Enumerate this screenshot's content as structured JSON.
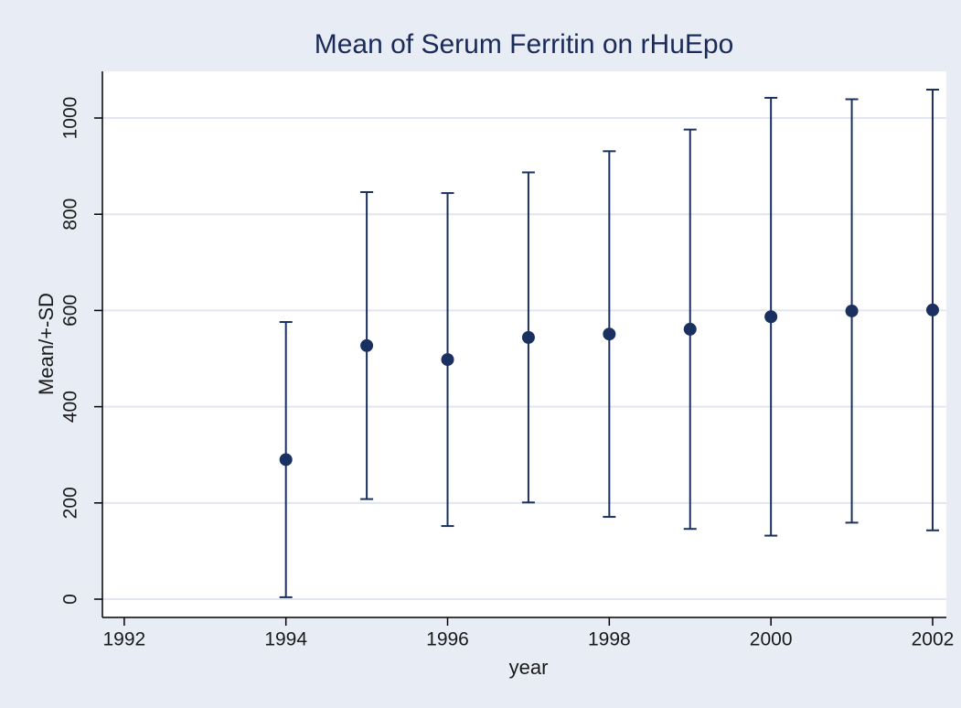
{
  "chart_data": {
    "type": "errorbar",
    "title": "Mean of  Serum Ferritin on rHuEpo",
    "x_label": "year",
    "y_label": "Mean/+-SD",
    "x": [
      1994,
      1995,
      1996,
      1997,
      1998,
      1999,
      2000,
      2001,
      2002
    ],
    "values": [
      290,
      527,
      498,
      544,
      551,
      561,
      587,
      599,
      601
    ],
    "errors": [
      286,
      319,
      346,
      343,
      380,
      415,
      455,
      440,
      458
    ],
    "color": "#1a3060",
    "xlim": [
      1991.73,
      2002.17
    ],
    "xticks": [
      1992,
      1994,
      1996,
      1998,
      2000,
      2002
    ],
    "ylim": [
      -38,
      1097
    ],
    "yticks": [
      0,
      200,
      400,
      600,
      800,
      1000
    ],
    "grid": true
  }
}
